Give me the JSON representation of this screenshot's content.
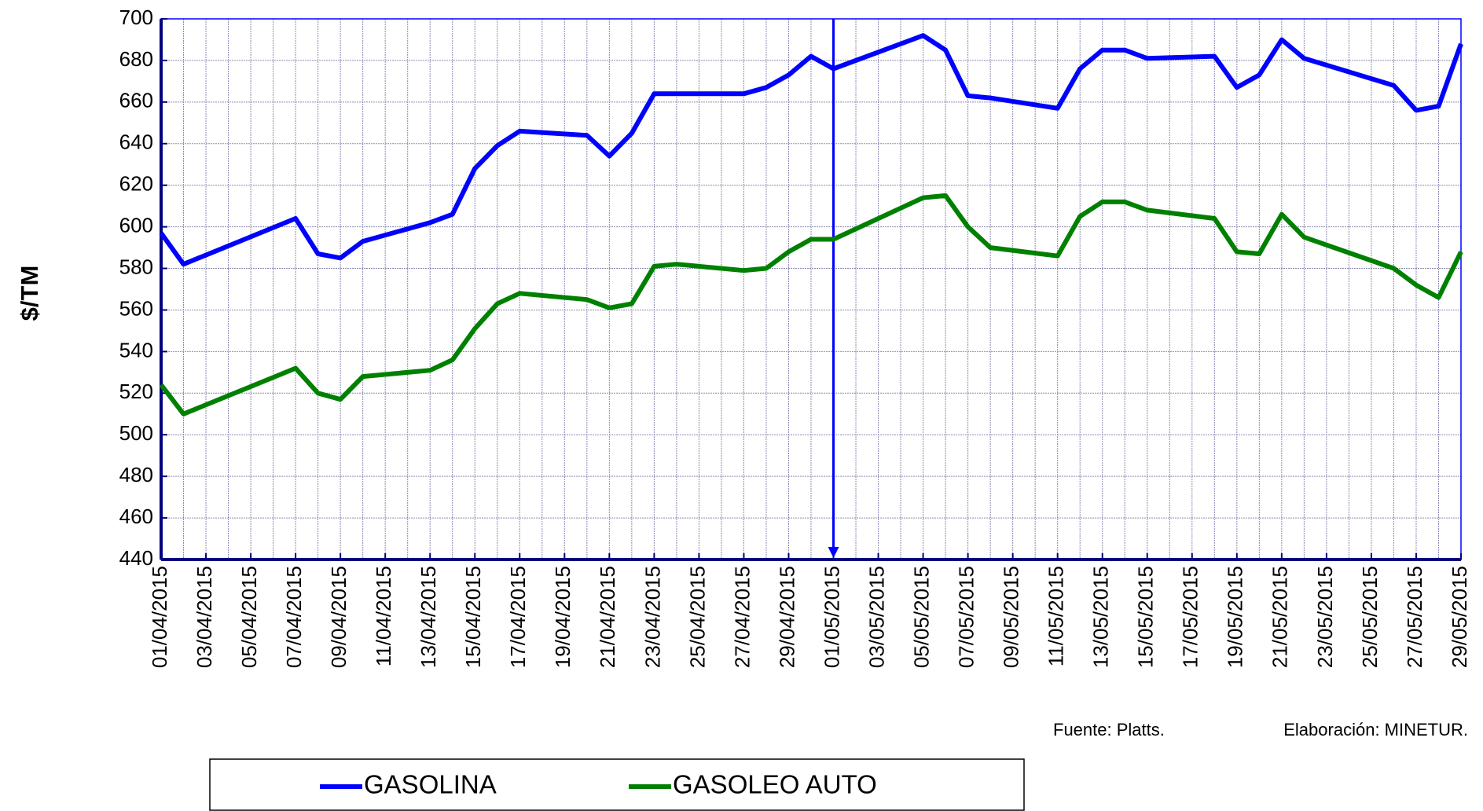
{
  "chart_data": {
    "type": "line",
    "ylabel": "$/TM",
    "source": "Fuente: Platts.",
    "credit": "Elaboración: MINETUR.",
    "x": [
      "01/04/2015",
      "02/04/2015",
      "07/04/2015",
      "08/04/2015",
      "09/04/2015",
      "10/04/2015",
      "13/04/2015",
      "14/04/2015",
      "15/04/2015",
      "16/04/2015",
      "17/04/2015",
      "20/04/2015",
      "21/04/2015",
      "22/04/2015",
      "23/04/2015",
      "24/04/2015",
      "27/04/2015",
      "28/04/2015",
      "29/04/2015",
      "30/04/2015",
      "01/05/2015",
      "05/05/2015",
      "06/05/2015",
      "07/05/2015",
      "08/05/2015",
      "11/05/2015",
      "12/05/2015",
      "13/05/2015",
      "14/05/2015",
      "15/05/2015",
      "18/05/2015",
      "19/05/2015",
      "20/05/2015",
      "21/05/2015",
      "22/05/2015",
      "26/05/2015",
      "27/05/2015",
      "28/05/2015",
      "29/05/2015"
    ],
    "series": [
      {
        "name": "GASOLINA",
        "color": "#0000ff",
        "values": [
          597,
          582,
          604,
          587,
          585,
          593,
          602,
          606,
          628,
          639,
          646,
          644,
          634,
          645,
          664,
          664,
          664,
          667,
          673,
          682,
          676,
          692,
          685,
          663,
          662,
          657,
          676,
          685,
          685,
          681,
          682,
          667,
          673,
          690,
          681,
          668,
          656,
          658,
          688
        ]
      },
      {
        "name": "GASOLEO AUTO",
        "color": "#008000",
        "values": [
          524,
          510,
          532,
          520,
          517,
          528,
          531,
          536,
          551,
          563,
          568,
          565,
          561,
          563,
          581,
          582,
          579,
          580,
          588,
          594,
          594,
          614,
          615,
          600,
          590,
          586,
          605,
          612,
          612,
          608,
          604,
          588,
          587,
          606,
          595,
          580,
          572,
          566,
          588
        ]
      }
    ],
    "reference_line": {
      "x": "01/05/2015",
      "color": "#0000ff"
    },
    "xlim": [
      "01/04/2015",
      "29/05/2015"
    ],
    "xticks": [
      "01/04/2015",
      "03/04/2015",
      "05/04/2015",
      "07/04/2015",
      "09/04/2015",
      "11/04/2015",
      "13/04/2015",
      "15/04/2015",
      "17/04/2015",
      "19/04/2015",
      "21/04/2015",
      "23/04/2015",
      "25/04/2015",
      "27/04/2015",
      "29/04/2015",
      "01/05/2015",
      "03/05/2015",
      "05/05/2015",
      "07/05/2015",
      "09/05/2015",
      "11/05/2015",
      "13/05/2015",
      "15/05/2015",
      "17/05/2015",
      "19/05/2015",
      "21/05/2015",
      "23/05/2015",
      "25/05/2015",
      "27/05/2015",
      "29/05/2015"
    ],
    "ylim": [
      440,
      700
    ],
    "yticks": [
      440,
      460,
      480,
      500,
      520,
      540,
      560,
      580,
      600,
      620,
      640,
      660,
      680,
      700
    ],
    "grid": true,
    "legend": "bottom"
  }
}
